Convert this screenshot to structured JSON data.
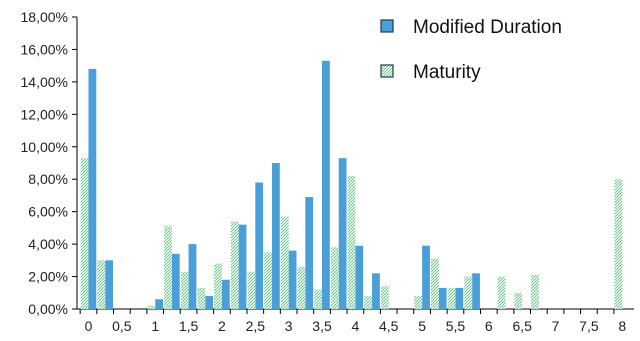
{
  "chart_data": {
    "type": "bar",
    "legend_placement": "top-right",
    "grid": false,
    "ylim": [
      0,
      18
    ],
    "y_ticks": [
      "0,00%",
      "2,00%",
      "4,00%",
      "6,00%",
      "8,00%",
      "10,00%",
      "12,00%",
      "14,00%",
      "16,00%",
      "18,00%"
    ],
    "x_tick_labels": [
      "0",
      "0,5",
      "1",
      "1,5",
      "2",
      "2,5",
      "3",
      "3,5",
      "4",
      "4,5",
      "5",
      "5,5",
      "6",
      "6,5",
      "7",
      "7,5",
      "8"
    ],
    "categories": [
      "0",
      "0,25",
      "0,5",
      "0,75",
      "1",
      "1,25",
      "1,5",
      "1,75",
      "2",
      "2,25",
      "2,5",
      "2,75",
      "3",
      "3,25",
      "3,5",
      "3,75",
      "4",
      "4,25",
      "4,5",
      "4,75",
      "5",
      "5,25",
      "5,5",
      "5,75",
      "6",
      "6,25",
      "6,5",
      "6,75",
      "7",
      "7,25",
      "7,5",
      "7,75",
      "8"
    ],
    "series": [
      {
        "name": "Modified Duration",
        "color": "#4a9fd8",
        "values": [
          14.8,
          3.0,
          0,
          0,
          0.6,
          3.4,
          4.0,
          0.8,
          1.8,
          5.2,
          7.8,
          9.0,
          3.6,
          6.9,
          15.3,
          9.3,
          3.9,
          2.2,
          0,
          0,
          3.9,
          1.3,
          1.3,
          2.2,
          0,
          0,
          0,
          0,
          0,
          0,
          0,
          0,
          0
        ]
      },
      {
        "name": "Maturity",
        "color": "#8fd6a8",
        "values": [
          9.3,
          3.0,
          0,
          0,
          0.2,
          5.1,
          2.3,
          1.3,
          2.8,
          5.4,
          2.3,
          3.5,
          5.7,
          2.6,
          1.2,
          3.8,
          8.2,
          0.8,
          1.4,
          0,
          0.8,
          3.1,
          1.3,
          2.0,
          0,
          2.0,
          1.0,
          2.1,
          0,
          0,
          0,
          0,
          8.0
        ]
      }
    ]
  }
}
